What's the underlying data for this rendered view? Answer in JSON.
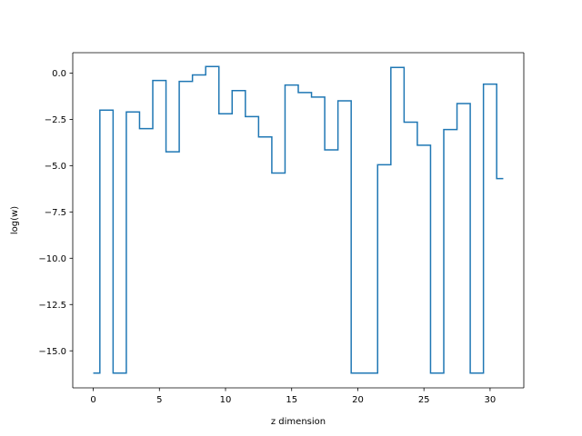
{
  "chart_data": {
    "type": "line",
    "drawstyle": "steps-mid",
    "xlabel": "z dimension",
    "ylabel": "log(w)",
    "xlim": [
      -1.55,
      32.55
    ],
    "ylim": [
      -17.0,
      1.1
    ],
    "xticks": [
      0,
      5,
      10,
      15,
      20,
      25,
      30
    ],
    "xtick_labels": [
      "0",
      "5",
      "10",
      "15",
      "20",
      "25",
      "30"
    ],
    "yticks": [
      -15.0,
      -12.5,
      -10.0,
      -7.5,
      -5.0,
      -2.5,
      0.0
    ],
    "ytick_labels": [
      "−15.0",
      "−12.5",
      "−10.0",
      "−7.5",
      "−5.0",
      "−2.5",
      "0.0"
    ],
    "grid": false,
    "legend": "none",
    "series": [
      {
        "color": "#1f77b4",
        "x": [
          0,
          1,
          2,
          3,
          4,
          5,
          6,
          7,
          8,
          9,
          10,
          11,
          12,
          13,
          14,
          15,
          16,
          17,
          18,
          19,
          20,
          21,
          22,
          23,
          24,
          25,
          26,
          27,
          28,
          29,
          30,
          31
        ],
        "y": [
          -16.2,
          -2.0,
          -16.2,
          -2.1,
          -3.0,
          -0.4,
          -4.25,
          -0.45,
          -0.1,
          0.35,
          -2.2,
          -0.95,
          -2.35,
          -3.45,
          -5.4,
          -0.65,
          -1.05,
          -1.3,
          -4.15,
          -1.5,
          -16.2,
          -16.2,
          -4.95,
          0.3,
          -2.65,
          -3.9,
          -16.2,
          -3.05,
          -1.65,
          -16.2,
          -0.6,
          -5.7
        ]
      }
    ]
  }
}
